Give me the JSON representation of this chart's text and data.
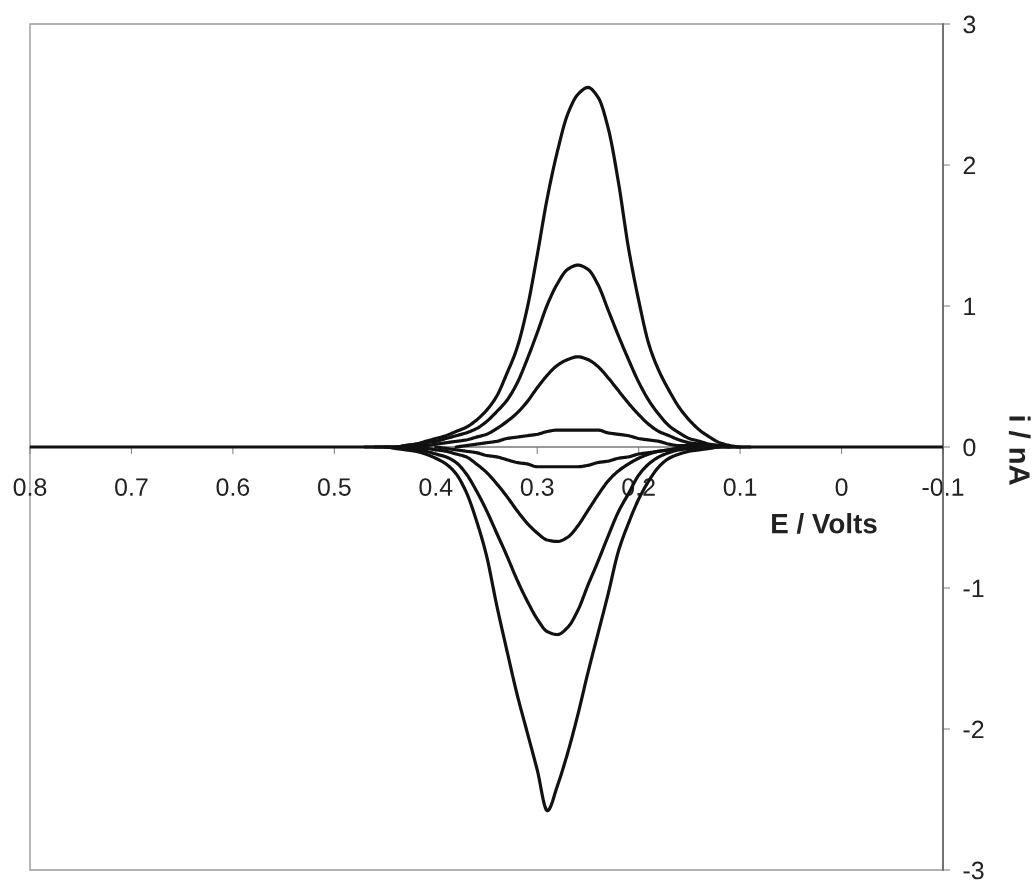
{
  "chart_data": {
    "type": "line",
    "xlabel": "E / Volts",
    "ylabel": "i / nA",
    "xlim": [
      0.8,
      -0.1
    ],
    "ylim": [
      -3,
      3
    ],
    "xticks": [
      0.8,
      0.7,
      0.6,
      0.5,
      0.4,
      0.3,
      0.2,
      0.1,
      0,
      -0.1
    ],
    "yticks": [
      -3,
      -2,
      -1,
      0,
      1,
      2,
      3
    ],
    "line_style": "solid",
    "x": [
      0.8,
      0.45,
      0.44,
      0.43,
      0.42,
      0.41,
      0.4,
      0.39,
      0.38,
      0.37,
      0.36,
      0.35,
      0.34,
      0.33,
      0.32,
      0.31,
      0.3,
      0.29,
      0.28,
      0.27,
      0.26,
      0.25,
      0.24,
      0.23,
      0.22,
      0.21,
      0.2,
      0.19,
      0.18,
      0.17,
      0.16,
      0.15,
      0.14,
      0.13,
      0.12,
      0.11,
      0.1,
      0.09,
      0.08,
      -0.1
    ],
    "series": [
      {
        "color": "#111111",
        "values": [
          0,
          0,
          0,
          0.01,
          0.02,
          0.04,
          0.06,
          0.08,
          0.11,
          0.14,
          0.19,
          0.26,
          0.36,
          0.52,
          0.7,
          0.98,
          1.36,
          1.77,
          2.1,
          2.36,
          2.5,
          2.55,
          2.48,
          2.26,
          1.88,
          1.41,
          1.04,
          0.73,
          0.54,
          0.4,
          0.28,
          0.19,
          0.12,
          0.07,
          0.03,
          0.01,
          0,
          0,
          0,
          0
        ]
      },
      {
        "color": "#111111",
        "x": [
          0.45,
          0.44,
          0.43,
          0.42,
          0.41,
          0.4,
          0.39,
          0.38,
          0.37,
          0.36,
          0.35,
          0.34,
          0.33,
          0.32,
          0.31,
          0.3,
          0.29,
          0.28,
          0.27,
          0.26,
          0.25,
          0.24,
          0.23,
          0.22,
          0.21,
          0.2,
          0.19,
          0.18,
          0.17,
          0.16,
          0.15,
          0.14,
          0.13,
          0.12,
          0.11,
          0.1
        ],
        "values": [
          0,
          0,
          0.01,
          0.02,
          0.03,
          0.04,
          0.06,
          0.08,
          0.1,
          0.13,
          0.18,
          0.25,
          0.33,
          0.45,
          0.62,
          0.81,
          1.01,
          1.16,
          1.26,
          1.29,
          1.26,
          1.15,
          0.97,
          0.79,
          0.62,
          0.46,
          0.33,
          0.23,
          0.15,
          0.1,
          0.06,
          0.04,
          0.02,
          0.01,
          0,
          0
        ]
      },
      {
        "color": "#111111",
        "x": [
          0.44,
          0.43,
          0.42,
          0.41,
          0.4,
          0.39,
          0.38,
          0.37,
          0.36,
          0.35,
          0.34,
          0.33,
          0.32,
          0.31,
          0.3,
          0.29,
          0.28,
          0.27,
          0.26,
          0.25,
          0.24,
          0.23,
          0.22,
          0.21,
          0.2,
          0.19,
          0.18,
          0.17,
          0.16,
          0.15,
          0.14,
          0.13,
          0.12,
          0.11
        ],
        "values": [
          0,
          0,
          0.01,
          0.01,
          0.02,
          0.03,
          0.04,
          0.05,
          0.07,
          0.09,
          0.13,
          0.18,
          0.24,
          0.32,
          0.42,
          0.51,
          0.58,
          0.62,
          0.64,
          0.62,
          0.57,
          0.49,
          0.4,
          0.31,
          0.23,
          0.16,
          0.11,
          0.08,
          0.05,
          0.03,
          0.02,
          0.01,
          0,
          0
        ]
      },
      {
        "color": "#111111",
        "x": [
          0.38,
          0.37,
          0.36,
          0.35,
          0.34,
          0.33,
          0.32,
          0.31,
          0.3,
          0.29,
          0.28,
          0.27,
          0.26,
          0.25,
          0.24,
          0.23,
          0.22,
          0.21,
          0.2,
          0.19,
          0.18,
          0.17,
          0.16,
          0.15,
          0.14
        ],
        "values": [
          0,
          0.01,
          0.02,
          0.03,
          0.04,
          0.06,
          0.07,
          0.08,
          0.09,
          0.11,
          0.12,
          0.12,
          0.12,
          0.12,
          0.12,
          0.1,
          0.09,
          0.08,
          0.06,
          0.05,
          0.04,
          0.02,
          0.01,
          0.01,
          0
        ]
      },
      {
        "color": "#111111",
        "x": [
          0.4,
          0.39,
          0.38,
          0.37,
          0.36,
          0.35,
          0.34,
          0.33,
          0.32,
          0.31,
          0.3,
          0.29,
          0.28,
          0.27,
          0.26,
          0.25,
          0.24,
          0.23,
          0.22,
          0.21,
          0.2,
          0.19,
          0.18,
          0.17,
          0.16,
          0.15
        ],
        "values": [
          0,
          -0.01,
          -0.02,
          -0.03,
          -0.04,
          -0.06,
          -0.07,
          -0.09,
          -0.11,
          -0.12,
          -0.14,
          -0.14,
          -0.14,
          -0.14,
          -0.14,
          -0.13,
          -0.11,
          -0.1,
          -0.08,
          -0.07,
          -0.05,
          -0.04,
          -0.03,
          -0.02,
          -0.01,
          0
        ]
      },
      {
        "color": "#111111",
        "x": [
          0.43,
          0.42,
          0.41,
          0.4,
          0.39,
          0.38,
          0.37,
          0.36,
          0.35,
          0.34,
          0.33,
          0.32,
          0.31,
          0.3,
          0.29,
          0.28,
          0.27,
          0.26,
          0.25,
          0.24,
          0.23,
          0.22,
          0.21,
          0.2,
          0.19,
          0.18,
          0.17,
          0.16,
          0.15,
          0.14,
          0.13
        ],
        "values": [
          0,
          -0.01,
          -0.01,
          -0.02,
          -0.03,
          -0.05,
          -0.07,
          -0.12,
          -0.18,
          -0.26,
          -0.35,
          -0.45,
          -0.54,
          -0.61,
          -0.66,
          -0.67,
          -0.64,
          -0.56,
          -0.45,
          -0.34,
          -0.24,
          -0.17,
          -0.12,
          -0.08,
          -0.05,
          -0.03,
          -0.02,
          -0.01,
          -0.01,
          0,
          0
        ]
      },
      {
        "color": "#111111",
        "x": [
          0.46,
          0.45,
          0.44,
          0.43,
          0.42,
          0.41,
          0.4,
          0.39,
          0.38,
          0.37,
          0.36,
          0.35,
          0.34,
          0.33,
          0.32,
          0.31,
          0.3,
          0.29,
          0.28,
          0.27,
          0.26,
          0.25,
          0.24,
          0.23,
          0.22,
          0.21,
          0.2,
          0.19,
          0.18,
          0.17,
          0.16,
          0.15,
          0.14,
          0.13,
          0.12
        ],
        "values": [
          0,
          0,
          0,
          -0.01,
          -0.02,
          -0.03,
          -0.05,
          -0.07,
          -0.11,
          -0.19,
          -0.31,
          -0.45,
          -0.61,
          -0.77,
          -0.94,
          -1.09,
          -1.22,
          -1.31,
          -1.33,
          -1.28,
          -1.16,
          -0.98,
          -0.81,
          -0.63,
          -0.46,
          -0.33,
          -0.2,
          -0.12,
          -0.07,
          -0.04,
          -0.02,
          -0.01,
          0,
          0,
          0
        ]
      },
      {
        "color": "#111111",
        "x": [
          0.47,
          0.46,
          0.45,
          0.44,
          0.43,
          0.42,
          0.41,
          0.4,
          0.39,
          0.38,
          0.37,
          0.36,
          0.35,
          0.34,
          0.33,
          0.32,
          0.31,
          0.3,
          0.29,
          0.28,
          0.27,
          0.26,
          0.25,
          0.24,
          0.23,
          0.22,
          0.21,
          0.2,
          0.19,
          0.18,
          0.17,
          0.16,
          0.15,
          0.14,
          0.13,
          0.12,
          0.11,
          0.1,
          0.09
        ],
        "values": [
          0,
          0,
          0,
          -0.01,
          -0.02,
          -0.03,
          -0.05,
          -0.08,
          -0.12,
          -0.19,
          -0.32,
          -0.52,
          -0.77,
          -1.12,
          -1.44,
          -1.75,
          -2.02,
          -2.29,
          -2.58,
          -2.4,
          -2.17,
          -1.9,
          -1.6,
          -1.32,
          -1.04,
          -0.74,
          -0.54,
          -0.37,
          -0.24,
          -0.14,
          -0.08,
          -0.05,
          -0.03,
          -0.02,
          -0.01,
          0,
          0,
          0,
          0
        ]
      }
    ]
  }
}
